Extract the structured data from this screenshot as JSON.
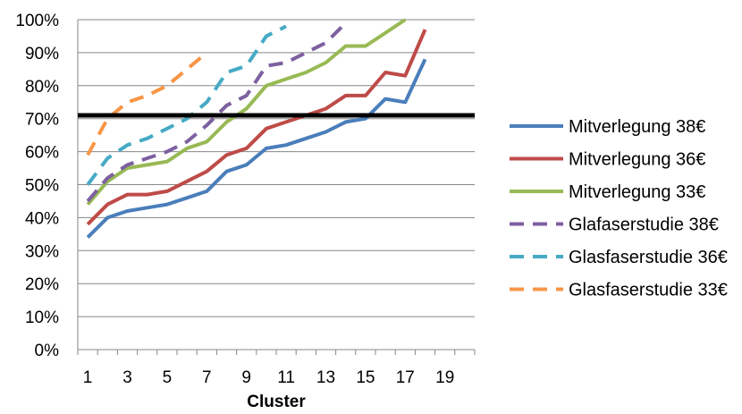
{
  "chart_data": {
    "type": "line",
    "title": "",
    "xlabel": "Cluster",
    "ylabel": "",
    "x_ticks": [
      "1",
      "3",
      "5",
      "7",
      "9",
      "11",
      "13",
      "15",
      "17",
      "19"
    ],
    "y_ticks": [
      "0%",
      "10%",
      "20%",
      "30%",
      "40%",
      "50%",
      "60%",
      "70%",
      "80%",
      "90%",
      "100%"
    ],
    "xlim": [
      0.5,
      20.5
    ],
    "ylim": [
      0,
      100
    ],
    "grid": "horizontal",
    "legend_position": "right",
    "reference_line": {
      "y": 71,
      "color": "#000000"
    },
    "series": [
      {
        "name": "Mitverlegung 38€",
        "color": "#4a7ebb",
        "dash": false,
        "x": [
          1,
          2,
          3,
          4,
          5,
          6,
          7,
          8,
          9,
          10,
          11,
          12,
          13,
          14,
          15,
          16,
          17,
          18
        ],
        "y": [
          34,
          40,
          42,
          43,
          44,
          46,
          48,
          54,
          56,
          61,
          62,
          64,
          66,
          69,
          70,
          76,
          75,
          88
        ]
      },
      {
        "name": "Mitverlegung 36€",
        "color": "#be4b48",
        "dash": false,
        "x": [
          1,
          2,
          3,
          4,
          5,
          6,
          7,
          8,
          9,
          10,
          11,
          12,
          13,
          14,
          15,
          16,
          17,
          18
        ],
        "y": [
          38,
          44,
          47,
          47,
          48,
          51,
          54,
          59,
          61,
          67,
          69,
          71,
          73,
          77,
          77,
          84,
          83,
          97
        ]
      },
      {
        "name": "Mitverlegung 33€",
        "color": "#98b954",
        "dash": false,
        "x": [
          1,
          2,
          3,
          4,
          5,
          6,
          7,
          8,
          9,
          10,
          11,
          12,
          13,
          14,
          15,
          16,
          17
        ],
        "y": [
          44,
          51,
          55,
          56,
          57,
          61,
          63,
          69,
          73,
          80,
          82,
          84,
          87,
          92,
          92,
          96,
          100
        ]
      },
      {
        "name": "Glafaserstudie 38€",
        "color": "#7d60a0",
        "dash": true,
        "x": [
          1,
          2,
          3,
          4,
          5,
          6,
          7,
          8,
          9,
          10,
          11,
          12,
          13,
          14
        ],
        "y": [
          45,
          52,
          56,
          58,
          60,
          63,
          68,
          74,
          77,
          86,
          87,
          90,
          93,
          99
        ]
      },
      {
        "name": "Glasfaserstudie 36€",
        "color": "#46aac5",
        "dash": true,
        "x": [
          1,
          2,
          3,
          4,
          5,
          6,
          7,
          8,
          9,
          10,
          11
        ],
        "y": [
          50,
          58,
          62,
          64,
          67,
          70,
          75,
          84,
          86,
          95,
          98
        ]
      },
      {
        "name": "Glasfaserstudie 33€",
        "color": "#f79646",
        "dash": true,
        "x": [
          1,
          2,
          3,
          4,
          5,
          6,
          7
        ],
        "y": [
          59,
          70,
          75,
          77,
          80,
          85,
          90
        ]
      }
    ]
  }
}
